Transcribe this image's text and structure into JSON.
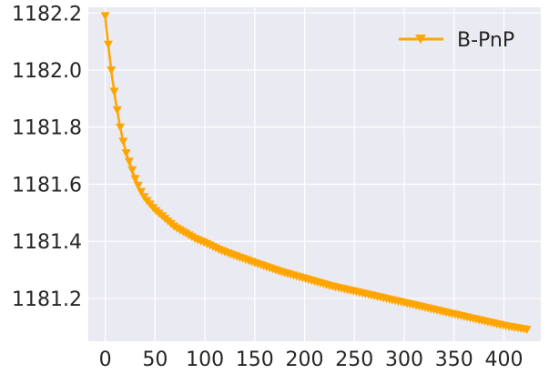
{
  "chart_data": {
    "type": "line",
    "title": "",
    "xlabel": "",
    "ylabel": "",
    "xlim": [
      -17,
      437
    ],
    "ylim": [
      1181.05,
      1182.22
    ],
    "x_ticks": [
      0,
      50,
      100,
      150,
      200,
      250,
      300,
      350,
      400
    ],
    "y_ticks": [
      1181.2,
      1181.4,
      1181.6,
      1181.8,
      1182.0,
      1182.2
    ],
    "y_tick_labels": [
      "1181.2",
      "1181.4",
      "1181.6",
      "1181.8",
      "1182.0",
      "1182.2"
    ],
    "grid": true,
    "legend_position": "top-right",
    "colors": {
      "background": "#eaeaf2",
      "grid": "#ffffff",
      "series": "#ffa500"
    },
    "series": [
      {
        "name": "B-PnP",
        "marker": "triangle-down",
        "marker_every": 3,
        "x": [
          0,
          1,
          2,
          3,
          4,
          5,
          6,
          7,
          8,
          10,
          12,
          15,
          18,
          21,
          25,
          30,
          35,
          40,
          45,
          50,
          60,
          70,
          80,
          90,
          100,
          115,
          130,
          150,
          175,
          200,
          225,
          250,
          275,
          300,
          325,
          350,
          375,
          400,
          425
        ],
        "y": [
          1182.19,
          1182.15,
          1182.12,
          1182.09,
          1182.06,
          1182.03,
          1182.0,
          1181.97,
          1181.95,
          1181.9,
          1181.86,
          1181.8,
          1181.75,
          1181.71,
          1181.67,
          1181.62,
          1181.58,
          1181.55,
          1181.53,
          1181.51,
          1181.48,
          1181.45,
          1181.43,
          1181.41,
          1181.395,
          1181.37,
          1181.35,
          1181.325,
          1181.295,
          1181.27,
          1181.245,
          1181.225,
          1181.205,
          1181.185,
          1181.165,
          1181.145,
          1181.125,
          1181.105,
          1181.09
        ]
      }
    ]
  }
}
